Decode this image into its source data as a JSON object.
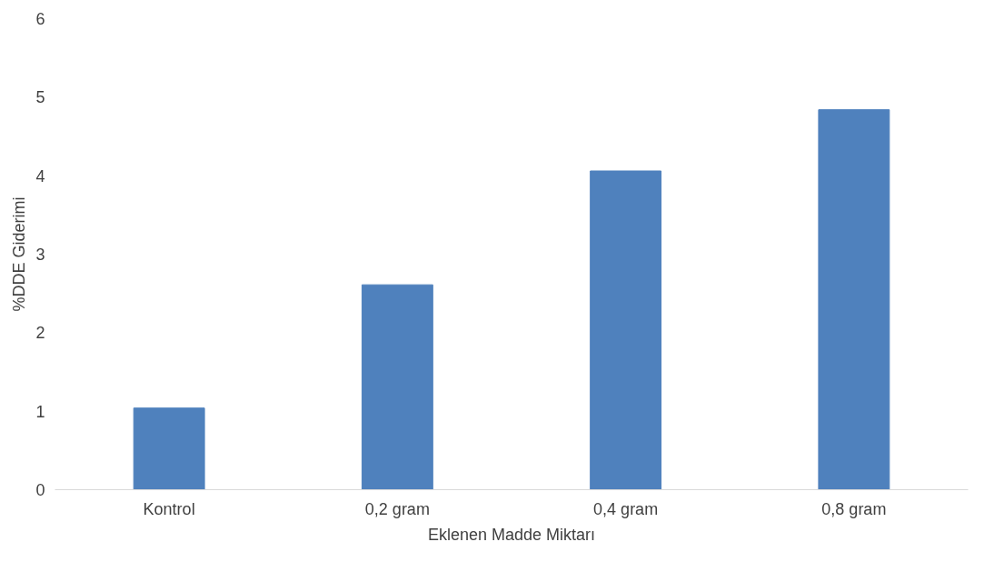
{
  "chart_data": {
    "type": "bar",
    "xlabel": "Eklenen Madde Miktarı",
    "ylabel": "%DDE Giderimi",
    "categories": [
      "Kontrol",
      "0,2 gram",
      "0,4 gram",
      "0,8 gram"
    ],
    "values": [
      1.04,
      2.61,
      4.06,
      4.84
    ],
    "color": "#4f81bd",
    "ylim": [
      0,
      6
    ],
    "yticks": [
      0,
      1,
      2,
      3,
      4,
      5,
      6
    ],
    "grid": false
  }
}
